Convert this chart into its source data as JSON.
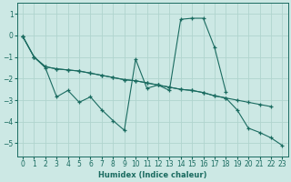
{
  "xlabel": "Humidex (Indice chaleur)",
  "background_color": "#cce8e4",
  "grid_color": "#b0d4ce",
  "line_color": "#1a6b60",
  "xlim": [
    -0.5,
    23.5
  ],
  "ylim": [
    -5.6,
    1.5
  ],
  "yticks": [
    1,
    0,
    -1,
    -2,
    -3,
    -4,
    -5
  ],
  "xticks": [
    0,
    1,
    2,
    3,
    4,
    5,
    6,
    7,
    8,
    9,
    10,
    11,
    12,
    13,
    14,
    15,
    16,
    17,
    18,
    19,
    20,
    21,
    22,
    23
  ],
  "line1_x": [
    0,
    1,
    2,
    3,
    4,
    5,
    6,
    7,
    8,
    9,
    10,
    11,
    12,
    13,
    14,
    15,
    16,
    17,
    18,
    19,
    20,
    21,
    22,
    23
  ],
  "line1_y": [
    -0.05,
    -1.0,
    -1.5,
    -2.85,
    -2.55,
    -3.1,
    -2.85,
    -3.45,
    -3.95,
    -4.4,
    -1.1,
    -2.45,
    -2.3,
    -2.55,
    0.75,
    0.8,
    0.8,
    -0.55,
    -2.6,
    null,
    null,
    null,
    null,
    null
  ],
  "line2_x": [
    0,
    1,
    2,
    3,
    4,
    5,
    6,
    7,
    8,
    9,
    10,
    11,
    12,
    13,
    14,
    15,
    16,
    17,
    18,
    19,
    20,
    21,
    22,
    23
  ],
  "line2_y": [
    -0.05,
    -1.0,
    -1.45,
    -1.55,
    -1.6,
    -1.65,
    -1.75,
    -1.85,
    -1.95,
    -2.05,
    -2.1,
    -2.2,
    -2.3,
    -2.4,
    -2.5,
    -2.55,
    -2.65,
    -2.8,
    -2.9,
    -3.0,
    -3.1,
    -3.2,
    -3.3,
    null
  ],
  "line3_x": [
    0,
    1,
    2,
    3,
    4,
    5,
    6,
    7,
    8,
    9,
    10,
    11,
    12,
    13,
    14,
    15,
    16,
    17,
    18,
    19,
    20,
    21,
    22,
    23
  ],
  "line3_y": [
    -0.05,
    -1.0,
    -1.45,
    -1.55,
    -1.6,
    -1.65,
    -1.75,
    -1.85,
    -1.95,
    -2.05,
    -2.1,
    -2.2,
    -2.3,
    -2.4,
    -2.5,
    -2.55,
    -2.65,
    -2.8,
    -2.9,
    -3.45,
    -4.3,
    -4.5,
    -4.75,
    -5.1
  ]
}
